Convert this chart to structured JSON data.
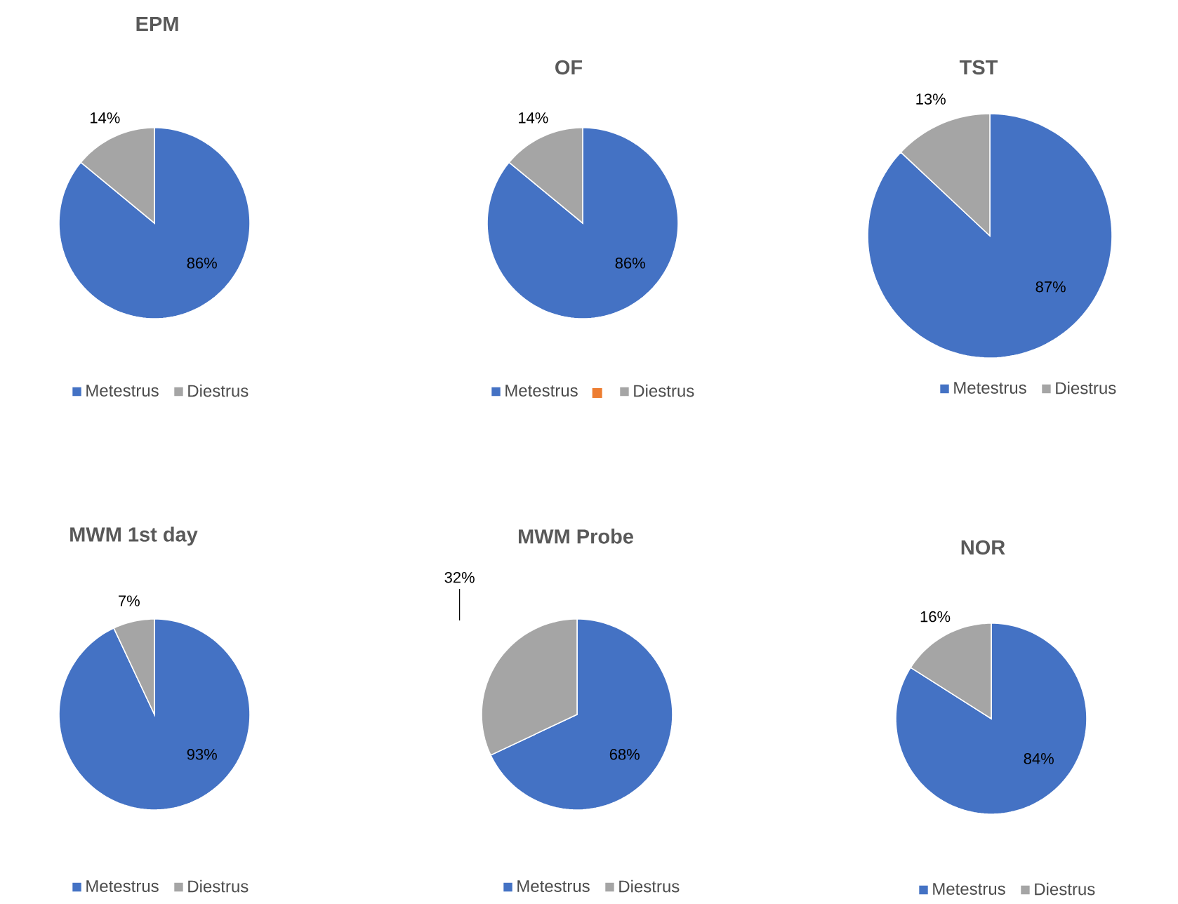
{
  "chart_data": [
    {
      "type": "pie",
      "title": "EPM",
      "categories": [
        "Metestrus",
        "Diestrus"
      ],
      "values": [
        86,
        14
      ],
      "colors": [
        "#4472c4",
        "#a5a5a5"
      ],
      "value_labels": [
        "86%",
        "14%"
      ],
      "legend": "bottom"
    },
    {
      "type": "pie",
      "title": "OF",
      "categories": [
        "Metestrus",
        null,
        "Diestrus"
      ],
      "values": [
        86,
        0,
        14
      ],
      "colors": [
        "#4472c4",
        "#ed7d31",
        "#a5a5a5"
      ],
      "value_labels": [
        "86%",
        null,
        "14%"
      ],
      "legend": "bottom"
    },
    {
      "type": "pie",
      "title": "TST",
      "categories": [
        "Metestrus",
        "Diestrus"
      ],
      "values": [
        87,
        13
      ],
      "colors": [
        "#4472c4",
        "#a5a5a5"
      ],
      "value_labels": [
        "87%",
        "13%"
      ],
      "legend": "bottom"
    },
    {
      "type": "pie",
      "title": "MWM 1st day",
      "categories": [
        "Metestrus",
        "Diestrus"
      ],
      "values": [
        93,
        7
      ],
      "colors": [
        "#4472c4",
        "#a5a5a5"
      ],
      "value_labels": [
        "93%",
        "7%"
      ],
      "legend": "bottom"
    },
    {
      "type": "pie",
      "title": "MWM Probe",
      "categories": [
        "Metestrus",
        "Diestrus"
      ],
      "values": [
        68,
        32
      ],
      "colors": [
        "#4472c4",
        "#a5a5a5"
      ],
      "value_labels": [
        "68%",
        "32%"
      ],
      "legend": "bottom"
    },
    {
      "type": "pie",
      "title": "NOR",
      "categories": [
        "Metestrus",
        "Diestrus"
      ],
      "values": [
        84,
        16
      ],
      "colors": [
        "#4472c4",
        "#a5a5a5"
      ],
      "value_labels": [
        "84%",
        "16%"
      ],
      "legend": "bottom"
    }
  ]
}
